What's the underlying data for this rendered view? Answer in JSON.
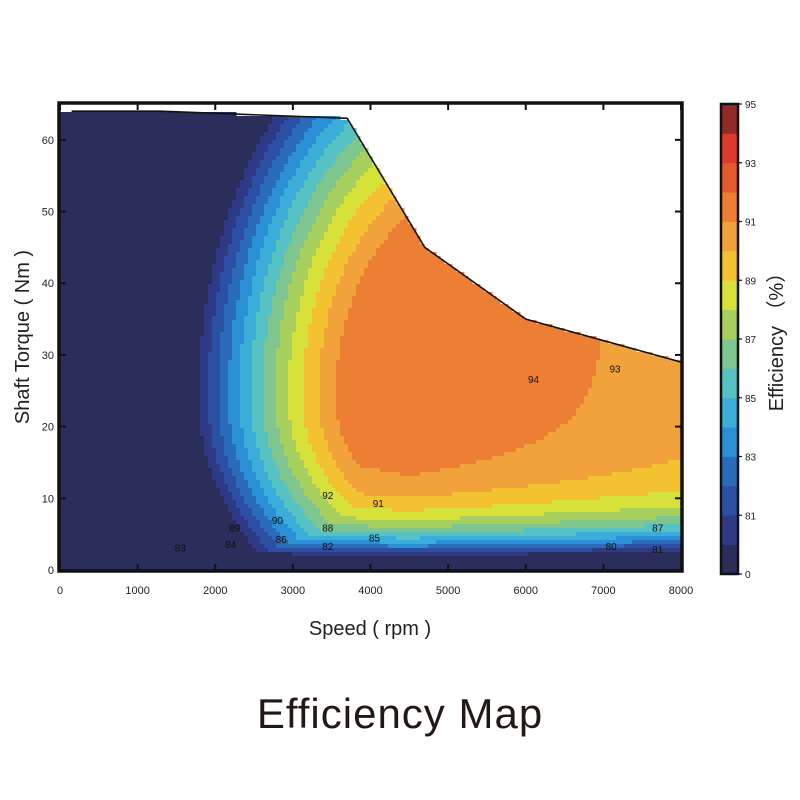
{
  "page_title": "Efficiency Map",
  "chart_data": {
    "type": "contour",
    "xlabel": "Speed ( rpm )",
    "ylabel": "Shaft Torque ( Nm )",
    "xlim": [
      0,
      8000
    ],
    "ylim": [
      0,
      65
    ],
    "x_ticks": [
      "0",
      "1000",
      "2000",
      "3000",
      "4000",
      "5000",
      "6000",
      "7000",
      "8000"
    ],
    "y_ticks": [
      "0",
      "10",
      "20",
      "30",
      "40",
      "50",
      "60"
    ],
    "colorbar": {
      "label": "Efficiency （%）",
      "tick_labels": [
        "0",
        "81",
        "83",
        "85",
        "87",
        "89",
        "91",
        "93",
        "95"
      ],
      "levels": [
        0,
        80,
        81,
        82,
        83,
        84,
        85,
        86,
        87,
        88,
        89,
        90,
        91,
        92,
        93,
        94,
        95
      ],
      "colors": [
        "#2b2d5b",
        "#2e3a86",
        "#2c4fa3",
        "#2b6cba",
        "#2a8fd4",
        "#3aaed8",
        "#57c2c4",
        "#7fc58f",
        "#a6cf5e",
        "#d6e23a",
        "#f2c230",
        "#f2a23a",
        "#ec7f34",
        "#e35a2c",
        "#dc3a2c",
        "#922a2a"
      ]
    },
    "max_torque_envelope": [
      [
        150,
        64
      ],
      [
        1300,
        64
      ],
      [
        3700,
        63
      ],
      [
        4700,
        45
      ],
      [
        6000,
        35
      ],
      [
        8000,
        29
      ]
    ],
    "efficiency_center": {
      "speed": 5400,
      "torque": 24
    },
    "contour_labels": [
      {
        "text": "80",
        "speed": 7100,
        "torque": 3.2
      },
      {
        "text": "81",
        "speed": 7700,
        "torque": 2.8
      },
      {
        "text": "82",
        "speed": 3450,
        "torque": 3.2
      },
      {
        "text": "83",
        "speed": 1550,
        "torque": 3.0
      },
      {
        "text": "84",
        "speed": 2200,
        "torque": 3.5
      },
      {
        "text": "85",
        "speed": 4050,
        "torque": 4.4
      },
      {
        "text": "86",
        "speed": 2850,
        "torque": 4.2
      },
      {
        "text": "87",
        "speed": 7700,
        "torque": 5.8
      },
      {
        "text": "88",
        "speed": 3450,
        "torque": 5.8
      },
      {
        "text": "89",
        "speed": 2250,
        "torque": 5.8
      },
      {
        "text": "90",
        "speed": 2800,
        "torque": 6.8
      },
      {
        "text": "91",
        "speed": 4100,
        "torque": 9.2
      },
      {
        "text": "92",
        "speed": 3450,
        "torque": 10.3
      },
      {
        "text": "93",
        "speed": 7150,
        "torque": 28
      },
      {
        "text": "94",
        "speed": 6100,
        "torque": 26.5
      }
    ]
  }
}
